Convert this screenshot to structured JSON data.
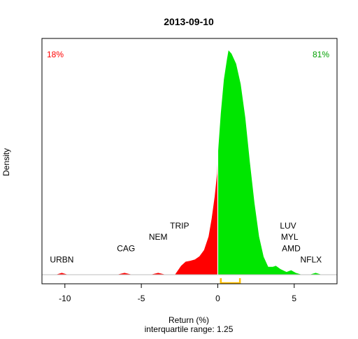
{
  "chart_data": {
    "type": "area",
    "title": "2013-09-10",
    "xlabel": "Return (%)",
    "subtitle": "interquartile range: 1.25",
    "ylabel": "Density",
    "xlim": [
      -11.5,
      7.8
    ],
    "ylim": [
      0,
      1.0
    ],
    "xticks": [
      -10,
      -5,
      0,
      5
    ],
    "pct_negative": "18%",
    "pct_positive": "81%",
    "colors": {
      "negative": "#ff0000",
      "positive": "#00e600",
      "iqr": "#ffc000",
      "baseline": "#bebebe"
    },
    "density": [
      [
        -10.6,
        0.0
      ],
      [
        -10.2,
        0.008
      ],
      [
        -9.8,
        0.0
      ],
      [
        -6.6,
        0.0
      ],
      [
        -6.1,
        0.008
      ],
      [
        -5.6,
        0.0
      ],
      [
        -4.4,
        0.0
      ],
      [
        -3.9,
        0.008
      ],
      [
        -3.4,
        0.0
      ],
      [
        -2.8,
        0.0
      ],
      [
        -2.4,
        0.04
      ],
      [
        -2.1,
        0.058
      ],
      [
        -1.8,
        0.062
      ],
      [
        -1.5,
        0.068
      ],
      [
        -1.2,
        0.082
      ],
      [
        -0.9,
        0.11
      ],
      [
        -0.6,
        0.17
      ],
      [
        -0.4,
        0.25
      ],
      [
        -0.2,
        0.35
      ],
      [
        -0.05,
        0.45
      ],
      [
        0.0,
        0.53
      ],
      [
        0.2,
        0.72
      ],
      [
        0.4,
        0.87
      ],
      [
        0.6,
        0.96
      ],
      [
        0.7,
        1.0
      ],
      [
        0.9,
        0.985
      ],
      [
        1.2,
        0.94
      ],
      [
        1.5,
        0.85
      ],
      [
        1.8,
        0.7
      ],
      [
        2.1,
        0.5
      ],
      [
        2.4,
        0.32
      ],
      [
        2.7,
        0.17
      ],
      [
        3.0,
        0.08
      ],
      [
        3.3,
        0.035
      ],
      [
        3.6,
        0.035
      ],
      [
        3.8,
        0.04
      ],
      [
        4.1,
        0.025
      ],
      [
        4.5,
        0.012
      ],
      [
        4.8,
        0.02
      ],
      [
        5.1,
        0.008
      ],
      [
        5.5,
        0.0
      ],
      [
        6.0,
        0.0
      ],
      [
        6.4,
        0.008
      ],
      [
        6.8,
        0.0
      ]
    ],
    "iqr": [
      0.2,
      1.45
    ],
    "annotations": [
      {
        "text": "URBN",
        "x": -10.2,
        "y": 0.055
      },
      {
        "text": "CAG",
        "x": -6.0,
        "y": 0.105
      },
      {
        "text": "NEM",
        "x": -3.9,
        "y": 0.155
      },
      {
        "text": "TRIP",
        "x": -2.5,
        "y": 0.205
      },
      {
        "text": "LUV",
        "x": 4.6,
        "y": 0.205
      },
      {
        "text": "MYL",
        "x": 4.7,
        "y": 0.155
      },
      {
        "text": "AMD",
        "x": 4.8,
        "y": 0.105
      },
      {
        "text": "NFLX",
        "x": 6.1,
        "y": 0.055
      }
    ]
  }
}
